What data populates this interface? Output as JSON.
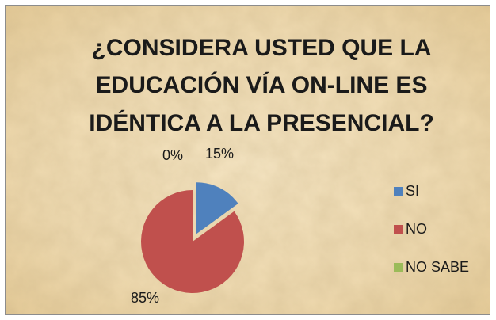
{
  "chart_data": {
    "type": "pie",
    "title": [
      "¿CONSIDERA USTED QUE LA",
      "EDUCACIÓN VÍA ON-LINE ES",
      "IDÉNTICA A LA PRESENCIAL?"
    ],
    "categories": [
      "SI",
      "NO",
      "NO SABE"
    ],
    "values": [
      15,
      85,
      0
    ],
    "value_labels": [
      "15%",
      "85%",
      "0%"
    ],
    "colors": [
      "#4f81bd",
      "#c0504d",
      "#9bbb59"
    ],
    "legend": "right"
  }
}
